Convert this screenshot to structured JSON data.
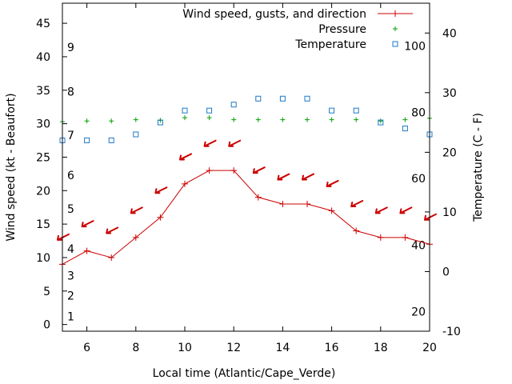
{
  "chart_data": {
    "type": "line",
    "xlabel": "Local time (Atlantic/Cape_Verde)",
    "ylabel_left": "Wind speed (kt - Beaufort)",
    "ylabel_right": "Temperature (C - F)",
    "xlim": [
      5,
      20
    ],
    "ylim_left": [
      -1,
      48
    ],
    "ylim_right": [
      -10,
      45
    ],
    "x_ticks": [
      6,
      8,
      10,
      12,
      14,
      16,
      18,
      20
    ],
    "y_left_ticks": [
      0,
      5,
      10,
      15,
      20,
      25,
      30,
      35,
      40,
      45
    ],
    "y_right_ticks": [
      -10,
      0,
      10,
      20,
      30,
      40
    ],
    "beaufort_scale": [
      {
        "label": "1",
        "kt": 1.2
      },
      {
        "label": "2",
        "kt": 4.3
      },
      {
        "label": "3",
        "kt": 7.3
      },
      {
        "label": "4",
        "kt": 11.3
      },
      {
        "label": "5",
        "kt": 17.3
      },
      {
        "label": "6",
        "kt": 22.3
      },
      {
        "label": "7",
        "kt": 28.3
      },
      {
        "label": "8",
        "kt": 34.8
      },
      {
        "label": "9",
        "kt": 41.4
      }
    ],
    "fahrenheit_scale": [
      {
        "label": "20",
        "c": -6.7
      },
      {
        "label": "40",
        "c": 4.4
      },
      {
        "label": "60",
        "c": 15.6
      },
      {
        "label": "80",
        "c": 26.7
      },
      {
        "label": "100",
        "c": 37.8
      }
    ],
    "legend_position": "top-right",
    "series": [
      {
        "name": "Wind speed, gusts, and direction",
        "color": "#cc0000",
        "axis": "left",
        "x": [
          5,
          6,
          7,
          8,
          9,
          10,
          11,
          12,
          13,
          14,
          15,
          16,
          17,
          18,
          19,
          20
        ],
        "values": [
          9,
          11,
          10,
          13,
          16,
          21,
          23,
          23,
          19,
          18,
          18,
          17,
          14,
          13,
          13,
          12
        ],
        "direction_arrows": {
          "x": [
            5,
            6,
            7,
            8,
            9,
            10,
            11,
            12,
            13,
            14,
            15,
            16,
            17,
            18,
            19,
            20
          ],
          "values": [
            13,
            15,
            14,
            17,
            20,
            25,
            27,
            27,
            23,
            22,
            22,
            21,
            18,
            17,
            17,
            16
          ]
        }
      },
      {
        "name": "Pressure",
        "color": "#00a000",
        "axis": "left",
        "x": [
          5,
          6,
          7,
          8,
          9,
          10,
          11,
          12,
          13,
          14,
          15,
          16,
          17,
          18,
          19,
          20
        ],
        "values": [
          30.3,
          30.4,
          30.4,
          30.6,
          30.5,
          30.9,
          30.9,
          30.6,
          30.6,
          30.6,
          30.6,
          30.6,
          30.6,
          30.4,
          30.6,
          30.8
        ]
      },
      {
        "name": "Temperature",
        "color": "#1e78c8",
        "axis": "right",
        "x": [
          5,
          6,
          7,
          8,
          9,
          10,
          11,
          12,
          13,
          14,
          15,
          16,
          17,
          18,
          19,
          20
        ],
        "values": [
          22,
          22,
          22,
          23,
          25,
          27,
          27,
          28,
          29,
          29,
          29,
          27,
          27,
          25,
          24,
          23
        ]
      }
    ]
  }
}
